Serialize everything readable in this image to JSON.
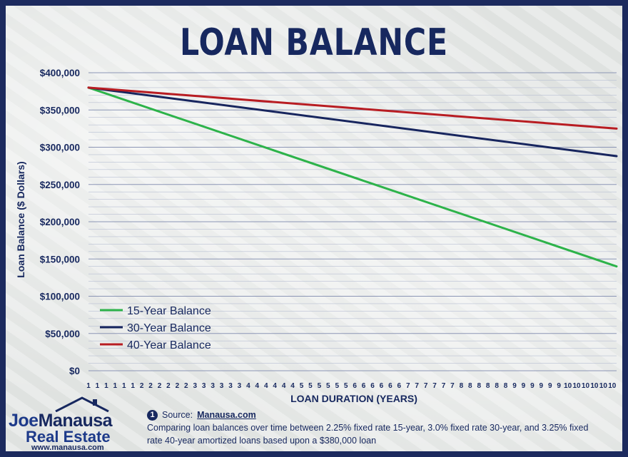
{
  "chart_data": {
    "type": "line",
    "title": "LOAN BALANCE",
    "xlabel": "LOAN DURATION (YEARS)",
    "ylabel": "Loan Balance ($ Dollars)",
    "ylim": [
      0,
      400000
    ],
    "y_ticks": [
      "$0",
      "$50,000",
      "$100,000",
      "$150,000",
      "$200,000",
      "$250,000",
      "$300,000",
      "$350,000",
      "$400,000"
    ],
    "x_tick_labels": [
      "1",
      "1",
      "1",
      "1",
      "1",
      "1",
      "1",
      "1",
      "1",
      "1",
      "1",
      "1",
      "2",
      "2",
      "2",
      "2",
      "2",
      "2",
      "2",
      "2",
      "2",
      "2",
      "2",
      "2",
      "3",
      "3",
      "3",
      "3",
      "3",
      "3",
      "3",
      "3",
      "3",
      "3",
      "3",
      "3",
      "4",
      "4",
      "4",
      "4",
      "4",
      "4",
      "4",
      "4",
      "4",
      "4",
      "4",
      "4",
      "5",
      "5",
      "5",
      "5",
      "5",
      "5",
      "5",
      "5",
      "5",
      "5",
      "5",
      "5",
      "6",
      "6",
      "6",
      "6",
      "6",
      "6",
      "6",
      "6",
      "6",
      "6",
      "6",
      "6",
      "7",
      "7",
      "7",
      "7",
      "7",
      "7",
      "7",
      "7",
      "7",
      "7",
      "7",
      "7",
      "8",
      "8",
      "8",
      "8",
      "8",
      "8",
      "8",
      "8",
      "8",
      "8",
      "8",
      "8",
      "9",
      "9",
      "9",
      "9",
      "9",
      "9",
      "9",
      "9",
      "9",
      "9",
      "9",
      "9",
      "10",
      "10",
      "10",
      "10",
      "10",
      "10",
      "10",
      "10",
      "10",
      "10",
      "10",
      "10"
    ],
    "x_months": [
      1,
      120
    ],
    "grid": true,
    "legend_position": "bottom-left",
    "series": [
      {
        "name": "15-Year Balance",
        "color": "#2db34a",
        "start": 380000,
        "end": 140000
      },
      {
        "name": "30-Year Balance",
        "color": "#17255e",
        "start": 380000,
        "end": 288000
      },
      {
        "name": "40-Year Balance",
        "color": "#b81c22",
        "start": 380000,
        "end": 325000
      }
    ]
  },
  "logo": {
    "first_name": "Joe",
    "last_name": "Manausa",
    "subtitle": "Real Estate",
    "url": "www.manausa.com"
  },
  "source": {
    "number": "1",
    "label": "Source:",
    "link": "Manausa.com",
    "description": "Comparing loan balances over time between 2.25% fixed rate 15-year, 3.0% fixed rate 30-year, and 3.25% fixed rate 40-year amortized loans based upon a $380,000 loan"
  },
  "colors": {
    "navy": "#17285f",
    "frame": "#1c2a5e",
    "green": "#2db34a",
    "red": "#b81c22"
  }
}
